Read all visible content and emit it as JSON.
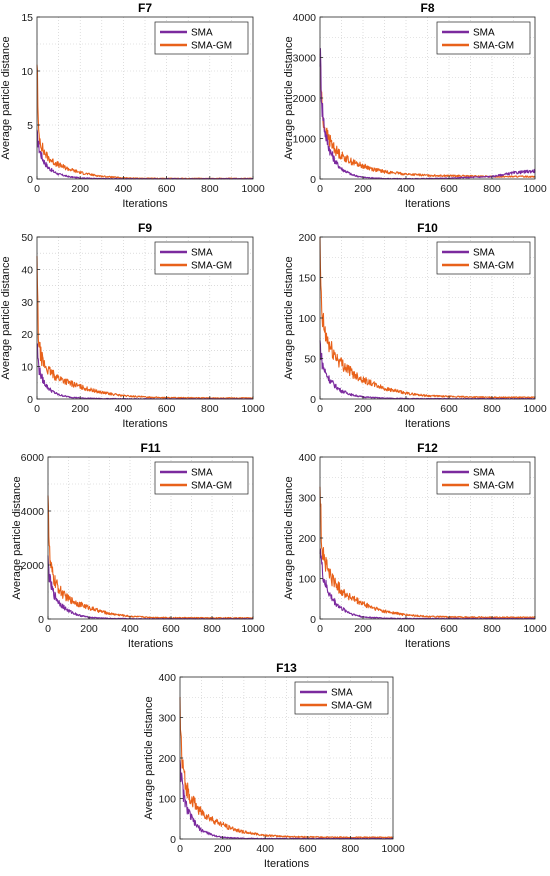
{
  "colors": {
    "SMA": "#7B2A9E",
    "SMA-GM": "#E8611A"
  },
  "chart_data": [
    {
      "type": "line",
      "title": "F7",
      "xlabel": "Iterations",
      "ylabel": "Average particle distance",
      "xlim": [
        0,
        1000
      ],
      "ylim": [
        0,
        15
      ],
      "xticks": [
        "0",
        "200",
        "400",
        "600",
        "800",
        "1000"
      ],
      "yticks": [
        "0",
        "5",
        "10",
        "15"
      ],
      "grid": true,
      "legend": "top-right",
      "series": [
        {
          "name": "SMA",
          "color": "#7B2A9E",
          "x": [
            0,
            5,
            10,
            20,
            30,
            50,
            75,
            100,
            150,
            200,
            300,
            400,
            600,
            800,
            1000
          ],
          "y": [
            4.0,
            3.4,
            2.8,
            2.2,
            1.7,
            1.1,
            0.7,
            0.45,
            0.2,
            0.1,
            0.03,
            0.02,
            0.02,
            0.02,
            0.02
          ]
        },
        {
          "name": "SMA-GM",
          "color": "#E8611A",
          "x": [
            0,
            5,
            10,
            20,
            30,
            50,
            75,
            100,
            150,
            200,
            250,
            300,
            400,
            500,
            600,
            800,
            1000
          ],
          "y": [
            12.0,
            5.0,
            4.0,
            3.2,
            2.6,
            2.0,
            1.6,
            1.3,
            0.9,
            0.6,
            0.4,
            0.25,
            0.1,
            0.06,
            0.05,
            0.05,
            0.05
          ]
        }
      ]
    },
    {
      "type": "line",
      "title": "F8",
      "xlabel": "Iterations",
      "ylabel": "",
      "xlim": [
        0,
        1000
      ],
      "ylim": [
        0,
        4000
      ],
      "xticks": [
        "0",
        "200",
        "400",
        "600",
        "800",
        "1000"
      ],
      "yticks": [
        "0",
        "1000",
        "2000",
        "3000",
        "4000"
      ],
      "grid": true,
      "legend": "top-right",
      "series": [
        {
          "name": "SMA",
          "color": "#7B2A9E",
          "x": [
            0,
            5,
            10,
            20,
            30,
            50,
            75,
            100,
            150,
            200,
            300,
            400,
            600,
            800,
            900,
            1000
          ],
          "y": [
            3200,
            2400,
            1800,
            1300,
            1000,
            650,
            400,
            250,
            100,
            40,
            10,
            5,
            20,
            60,
            150,
            200
          ]
        },
        {
          "name": "SMA-GM",
          "color": "#E8611A",
          "x": [
            0,
            5,
            10,
            20,
            30,
            50,
            75,
            100,
            150,
            200,
            250,
            300,
            400,
            500,
            600,
            800,
            1000
          ],
          "y": [
            3200,
            2200,
            1700,
            1300,
            1100,
            900,
            700,
            580,
            420,
            320,
            240,
            180,
            120,
            90,
            80,
            60,
            60
          ]
        }
      ]
    },
    {
      "type": "line",
      "title": "F9",
      "xlabel": "Iterations",
      "ylabel": "Average particle distance",
      "xlim": [
        0,
        1000
      ],
      "ylim": [
        0,
        50
      ],
      "xticks": [
        "0",
        "200",
        "400",
        "600",
        "800",
        "1000"
      ],
      "yticks": [
        "0",
        "10",
        "20",
        "30",
        "40",
        "50"
      ],
      "grid": true,
      "legend": "top-right",
      "series": [
        {
          "name": "SMA",
          "color": "#7B2A9E",
          "x": [
            0,
            5,
            10,
            20,
            30,
            50,
            75,
            100,
            150,
            200,
            300,
            400,
            600,
            800,
            1000
          ],
          "y": [
            18,
            12,
            9,
            7,
            5.5,
            3.5,
            2.2,
            1.3,
            0.6,
            0.3,
            0.1,
            0.05,
            0.02,
            0.02,
            0.02
          ]
        },
        {
          "name": "SMA-GM",
          "color": "#E8611A",
          "x": [
            0,
            5,
            10,
            20,
            30,
            50,
            75,
            100,
            150,
            200,
            250,
            300,
            400,
            500,
            600,
            800,
            1000
          ],
          "y": [
            42,
            22,
            16,
            13,
            11,
            9,
            7.5,
            6.5,
            5,
            3.8,
            2.8,
            2,
            1,
            0.6,
            0.4,
            0.3,
            0.3
          ]
        }
      ]
    },
    {
      "type": "line",
      "title": "F10",
      "xlabel": "Iterations",
      "ylabel": "",
      "xlim": [
        0,
        1000
      ],
      "ylim": [
        0,
        200
      ],
      "xticks": [
        "0",
        "200",
        "400",
        "600",
        "800",
        "1000"
      ],
      "yticks": [
        "0",
        "50",
        "100",
        "150",
        "200"
      ],
      "grid": true,
      "legend": "top-right",
      "series": [
        {
          "name": "SMA",
          "color": "#7B2A9E",
          "x": [
            0,
            5,
            10,
            20,
            30,
            50,
            75,
            100,
            150,
            200,
            300,
            400,
            600,
            800,
            1000
          ],
          "y": [
            70,
            55,
            45,
            36,
            30,
            22,
            15,
            10,
            5,
            2.5,
            1,
            0.5,
            0.3,
            0.3,
            0.3
          ]
        },
        {
          "name": "SMA-GM",
          "color": "#E8611A",
          "x": [
            0,
            5,
            10,
            20,
            30,
            50,
            75,
            100,
            150,
            200,
            250,
            300,
            400,
            500,
            600,
            800,
            1000
          ],
          "y": [
            190,
            120,
            100,
            85,
            75,
            62,
            52,
            44,
            32,
            24,
            18,
            13,
            7,
            4,
            3,
            2,
            2
          ]
        }
      ]
    },
    {
      "type": "line",
      "title": "F11",
      "xlabel": "Iterations",
      "ylabel": "Average particle distance",
      "xlim": [
        0,
        1000
      ],
      "ylim": [
        0,
        6000
      ],
      "xticks": [
        "0",
        "200",
        "400",
        "600",
        "800",
        "1000"
      ],
      "yticks": [
        "0",
        "2000",
        "4000",
        "6000"
      ],
      "grid": true,
      "legend": "top-right",
      "series": [
        {
          "name": "SMA",
          "color": "#7B2A9E",
          "x": [
            0,
            5,
            10,
            20,
            30,
            50,
            75,
            100,
            150,
            200,
            300,
            400,
            600,
            800,
            1000
          ],
          "y": [
            2100,
            1700,
            1400,
            1100,
            900,
            650,
            450,
            300,
            140,
            60,
            20,
            10,
            5,
            5,
            5
          ]
        },
        {
          "name": "SMA-GM",
          "color": "#E8611A",
          "x": [
            0,
            5,
            10,
            20,
            30,
            50,
            75,
            100,
            150,
            200,
            250,
            300,
            400,
            500,
            600,
            800,
            1000
          ],
          "y": [
            5300,
            2800,
            2100,
            1700,
            1450,
            1150,
            900,
            750,
            560,
            420,
            300,
            200,
            100,
            60,
            45,
            40,
            40
          ]
        }
      ]
    },
    {
      "type": "line",
      "title": "F12",
      "xlabel": "Iterations",
      "ylabel": "",
      "xlim": [
        0,
        1000
      ],
      "ylim": [
        0,
        400
      ],
      "xticks": [
        "0",
        "200",
        "400",
        "600",
        "800",
        "1000"
      ],
      "yticks": [
        "0",
        "100",
        "200",
        "300",
        "400"
      ],
      "grid": true,
      "legend": "top-right",
      "series": [
        {
          "name": "SMA",
          "color": "#7B2A9E",
          "x": [
            0,
            5,
            10,
            20,
            30,
            50,
            75,
            100,
            150,
            200,
            300,
            400,
            600,
            800,
            1000
          ],
          "y": [
            190,
            150,
            120,
            95,
            78,
            55,
            38,
            26,
            12,
            5,
            2,
            1,
            1,
            1,
            1
          ]
        },
        {
          "name": "SMA-GM",
          "color": "#E8611A",
          "x": [
            0,
            5,
            10,
            20,
            30,
            50,
            75,
            100,
            150,
            200,
            250,
            300,
            400,
            500,
            600,
            800,
            1000
          ],
          "y": [
            345,
            220,
            180,
            150,
            130,
            105,
            85,
            70,
            50,
            37,
            27,
            19,
            10,
            6,
            5,
            4,
            4
          ]
        }
      ]
    },
    {
      "type": "line",
      "title": "F13",
      "xlabel": "Iterations",
      "ylabel": "Average particle distance",
      "xlim": [
        0,
        1000
      ],
      "ylim": [
        0,
        400
      ],
      "xticks": [
        "0",
        "200",
        "400",
        "600",
        "800",
        "1000"
      ],
      "yticks": [
        "0",
        "100",
        "200",
        "300",
        "400"
      ],
      "grid": true,
      "legend": "top-right",
      "series": [
        {
          "name": "SMA",
          "color": "#7B2A9E",
          "x": [
            0,
            5,
            10,
            20,
            30,
            50,
            75,
            100,
            150,
            200,
            300,
            400,
            600,
            800,
            1000
          ],
          "y": [
            210,
            160,
            130,
            100,
            80,
            55,
            35,
            22,
            10,
            4,
            1.5,
            1,
            1,
            1,
            1
          ]
        },
        {
          "name": "SMA-GM",
          "color": "#E8611A",
          "x": [
            0,
            5,
            10,
            20,
            30,
            50,
            75,
            100,
            150,
            200,
            250,
            300,
            400,
            500,
            600,
            800,
            1000
          ],
          "y": [
            340,
            230,
            185,
            150,
            128,
            102,
            82,
            66,
            48,
            35,
            25,
            17,
            9,
            6,
            5,
            4,
            4
          ]
        }
      ]
    }
  ]
}
